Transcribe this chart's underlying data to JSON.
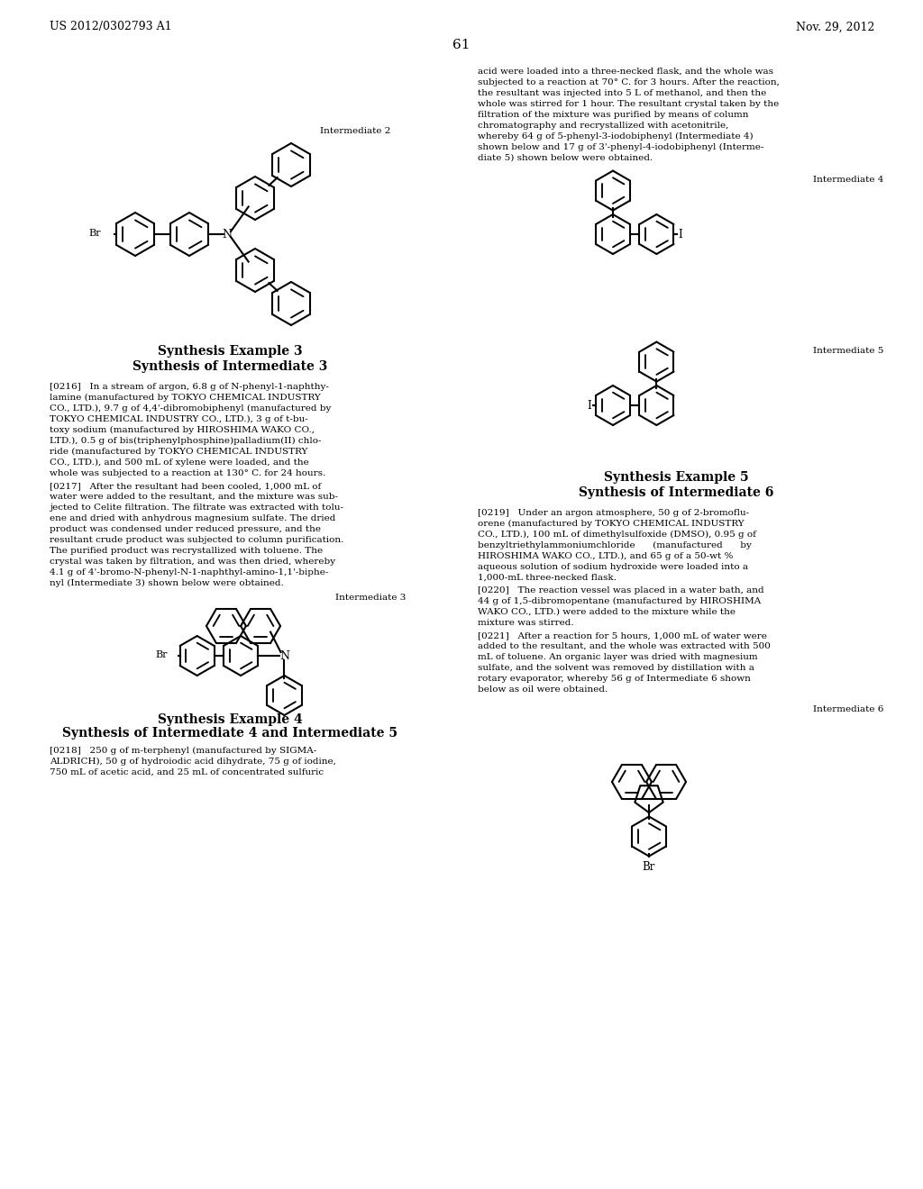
{
  "page_header_left": "US 2012/0302793 A1",
  "page_header_right": "Nov. 29, 2012",
  "page_number": "61",
  "background_color": "#ffffff",
  "text_color": "#000000",
  "title1": "Synthesis Example 3",
  "subtitle1": "Synthesis of Intermediate 3",
  "title2": "Synthesis Example 4",
  "subtitle2": "Synthesis of Intermediate 4 and Intermediate 5",
  "title3": "Synthesis Example 5",
  "subtitle3": "Synthesis of Intermediate 6",
  "label_int2": "Intermediate 2",
  "label_int3": "Intermediate 3",
  "label_int4": "Intermediate 4",
  "label_int5": "Intermediate 5",
  "label_int6": "Intermediate 6",
  "para0216": "[0216] In a stream of argon, 6.8 g of N-phenyl-1-naphthy-lamine (manufactured by TOKYO CHEMICAL INDUSTRY CO., LTD.), 9.7 g of 4,4’-dibromobiphenyl (manufactured by TOKYO CHEMICAL INDUSTRY CO., LTD.), 3 g of t-bu-toxy sodium (manufactured by HIROSHIMA WAKO CO., LTD.), 0.5 g of bis(triphenylphosphine)palladium(II) chlo-ride (manufactured by TOKYO CHEMICAL INDUSTRY CO., LTD.), and 500 mL of xylene were loaded, and the whole was subjected to a reaction at 130° C. for 24 hours.",
  "para0217": "[0217] After the resultant had been cooled, 1,000 mL of water were added to the resultant, and the mixture was sub-jected to Celite filtration. The filtrate was extracted with tolu-ene and dried with anhydrous magnesium sulfate. The dried product was condensed under reduced pressure, and the resultant crude product was subjected to column purification. The purified product was recrystallized with toluene. The crystal was taken by filtration, and was then dried, whereby 4.1 g of 4’-bromo-N-phenyl-N-1-naphthyl-amino-1,1’-biphe-nyl (Intermediate 3) shown below were obtained.",
  "para0218": "[0218] 250 g of m-terphenyl (manufactured by SIGMA-ALDRICH), 50 g of hydroiodic acid dihydrate, 75 g of iodine, 750 mL of acetic acid, and 25 mL of concentrated sulfuric",
  "para0218b": "acid were loaded into a three-necked flask, and the whole was subjected to a reaction at 70° C. for 3 hours. After the reaction, the resultant was injected into 5 L of methanol, and then the whole was stirred for 1 hour. The resultant crystal taken by the filtration of the mixture was purified by means of column chromatography and recrystallized with acetonitrile, whereby 64 g of 5-phenyl-3-iodobiphenyl (Intermediate 4) shown below and 17 g of 3’-phenyl-4-iodobiphenyl (Interme-diate 5) shown below were obtained.",
  "para0219": "[0219] Under an argon atmosphere, 50 g of 2-bromoflu-orene (manufactured by TOKYO CHEMICAL INDUSTRY CO., LTD.), 100 mL of dimethylsulfoxide (DMSO), 0.95 g of benzyltriethylammoniumchloride (manufactured by HIROSHIMA WAKO CO., LTD.), and 65 g of a 50-wt % aqueous solution of sodium hydroxide were loaded into a 1,000-mL three-necked flask.",
  "para0220": "[0220] The reaction vessel was placed in a water bath, and 44 g of 1,5-dibromopentane (manufactured by HIROSHIMA WAKO CO., LTD.) were added to the mixture while the mixture was stirred.",
  "para0221": "[0221] After a reaction for 5 hours, 1,000 mL of water were added to the resultant, and the whole was extracted with 500 mL of toluene. An organic layer was dried with magnesium sulfate, and the solvent was removed by distillation with a rotary evaporator, whereby 56 g of Intermediate 6 shown below as oil were obtained."
}
